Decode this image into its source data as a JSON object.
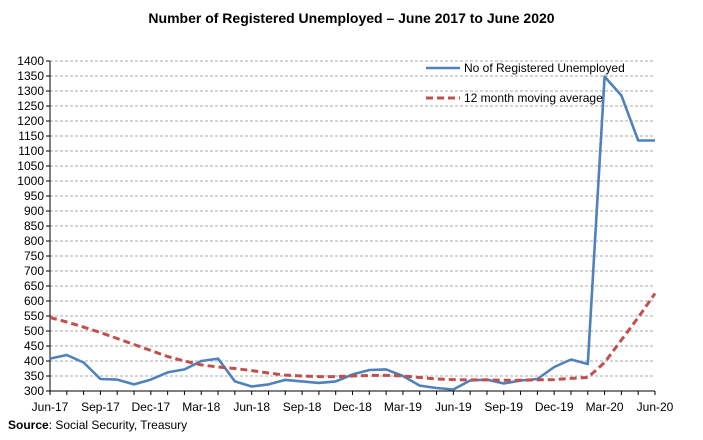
{
  "chart_data": {
    "type": "line",
    "title": "Number of Registered Unemployed – June 2017 to June 2020",
    "xlabel": "",
    "ylabel": "",
    "ylim": [
      300,
      1400
    ],
    "ytick_step": 50,
    "x_tick_labels": [
      "Jun-17",
      "Sep-17",
      "Dec-17",
      "Mar-18",
      "Jun-18",
      "Sep-18",
      "Dec-18",
      "Mar-19",
      "Jun-19",
      "Sep-19",
      "Dec-19",
      "Mar-20",
      "Jun-20"
    ],
    "months": [
      "Jun-17",
      "Jul-17",
      "Aug-17",
      "Sep-17",
      "Oct-17",
      "Nov-17",
      "Dec-17",
      "Jan-18",
      "Feb-18",
      "Mar-18",
      "Apr-18",
      "May-18",
      "Jun-18",
      "Jul-18",
      "Aug-18",
      "Sep-18",
      "Oct-18",
      "Nov-18",
      "Dec-18",
      "Jan-19",
      "Feb-19",
      "Mar-19",
      "Apr-19",
      "May-19",
      "Jun-19",
      "Jul-19",
      "Aug-19",
      "Sep-19",
      "Oct-19",
      "Nov-19",
      "Dec-19",
      "Jan-20",
      "Feb-20",
      "Mar-20",
      "Apr-20",
      "May-20",
      "Jun-20"
    ],
    "grid": true,
    "legend_position": "top-right",
    "series": [
      {
        "name": "No of Registered Unemployed",
        "color": "#4f81bd",
        "style": "solid",
        "values": [
          408,
          420,
          395,
          340,
          338,
          322,
          338,
          362,
          372,
          400,
          408,
          332,
          315,
          322,
          337,
          332,
          327,
          332,
          355,
          370,
          372,
          350,
          318,
          310,
          305,
          335,
          338,
          325,
          335,
          340,
          380,
          405,
          390,
          1348,
          1285,
          1135,
          1135
        ]
      },
      {
        "name": "12 month moving average",
        "color": "#c0504d",
        "style": "dashed",
        "values": [
          545,
          530,
          513,
          495,
          475,
          455,
          435,
          415,
          400,
          387,
          380,
          375,
          368,
          360,
          353,
          350,
          348,
          348,
          350,
          352,
          352,
          350,
          345,
          340,
          338,
          337,
          337,
          336,
          336,
          337,
          338,
          342,
          345,
          395,
          470,
          545,
          625
        ]
      }
    ]
  },
  "source": {
    "label": "Source",
    "text": ": Social Security, Treasury"
  }
}
